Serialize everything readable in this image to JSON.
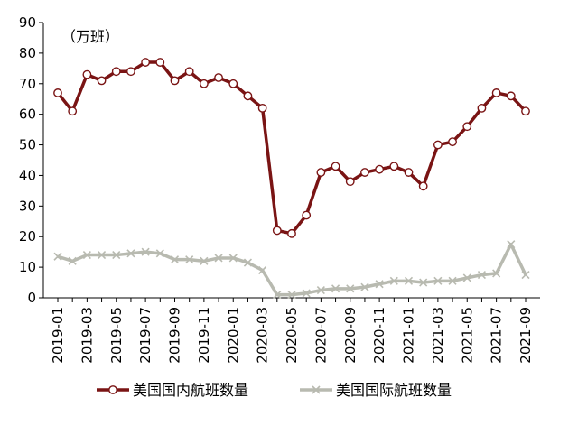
{
  "chart_data": {
    "type": "line",
    "unit_label": "（万班）",
    "ylim": [
      0,
      90
    ],
    "yticks": [
      0,
      10,
      20,
      30,
      40,
      50,
      60,
      70,
      80,
      90
    ],
    "x": [
      "2019-01",
      "2019-02",
      "2019-03",
      "2019-04",
      "2019-05",
      "2019-06",
      "2019-07",
      "2019-08",
      "2019-09",
      "2019-10",
      "2019-11",
      "2019-12",
      "2020-01",
      "2020-02",
      "2020-03",
      "2020-04",
      "2020-05",
      "2020-06",
      "2020-07",
      "2020-08",
      "2020-09",
      "2020-10",
      "2020-11",
      "2020-12",
      "2021-01",
      "2021-02",
      "2021-03",
      "2021-04",
      "2021-05",
      "2021-06",
      "2021-07",
      "2021-08",
      "2021-09"
    ],
    "xtick_labels": [
      "2019-01",
      "2019-03",
      "2019-05",
      "2019-07",
      "2019-09",
      "2019-11",
      "2020-01",
      "2020-03",
      "2020-05",
      "2020-07",
      "2020-09",
      "2020-11",
      "2021-01",
      "2021-03",
      "2021-05",
      "2021-07",
      "2021-09"
    ],
    "grid": false,
    "legend_position": "bottom",
    "series": [
      {
        "name": "美国国内航班数量",
        "color": "#7a1414",
        "marker": "circle",
        "values": [
          67,
          61,
          73,
          71,
          74,
          74,
          77,
          77,
          71,
          74,
          70,
          72,
          70,
          66,
          62,
          22,
          21,
          27,
          41,
          43,
          38,
          41,
          42,
          43,
          41,
          36.5,
          50,
          51,
          56,
          62,
          67,
          66,
          61
        ]
      },
      {
        "name": "美国国际航班数量",
        "color": "#b8bab0",
        "marker": "x",
        "values": [
          13.5,
          12,
          14,
          14,
          14,
          14.5,
          15,
          14.5,
          12.5,
          12.5,
          12,
          13,
          13,
          11.5,
          9,
          1,
          1,
          1.5,
          2.5,
          3,
          3,
          3.5,
          4.5,
          5.5,
          5.5,
          5,
          5.5,
          5.5,
          6.5,
          7.5,
          8,
          17.5,
          7.5
        ]
      }
    ]
  }
}
